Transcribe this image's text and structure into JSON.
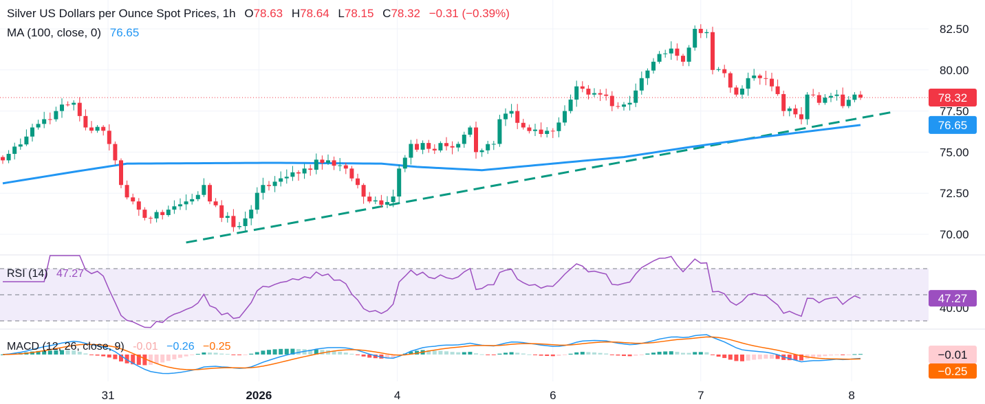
{
  "header": {
    "title": "Silver US Dollars per Ounce Spot Prices, 1h",
    "o_label": "O",
    "o": "78.63",
    "h_label": "H",
    "h": "78.64",
    "l_label": "L",
    "l": "78.15",
    "c_label": "C",
    "c": "78.32",
    "change": "−0.31 (−0.39%)",
    "ma_label": "MA (100, close, 0)",
    "ma_value": "76.65"
  },
  "rsi": {
    "label": "RSI (14)",
    "value": "47.27"
  },
  "macd": {
    "label": "MACD (12, 26, close, 9)",
    "hist": "-0.01",
    "macd": "−0.26",
    "signal": "−0.25",
    "hist_axis": "−0.01",
    "signal_axis": "−0.25"
  },
  "colors": {
    "up": "#089981",
    "down": "#f23645",
    "ma": "#2196f3",
    "rsi": "#9c4fc0",
    "macd": "#2196f3",
    "signal": "#ff6d00",
    "trend": "#089981"
  },
  "chart_data": {
    "type": "candlestick",
    "timeframe": "1h",
    "price_ticks": [
      70.0,
      72.5,
      75.0,
      77.5,
      80.0,
      82.5
    ],
    "price_tick_labels": [
      "70.00",
      "72.50",
      "75.00",
      "77.50",
      "80.00",
      "82.50"
    ],
    "ylim": [
      69.0,
      83.5
    ],
    "rsi_ticks": [
      "40.00"
    ],
    "last_price_label": "78.32",
    "ma_price_label": "76.65",
    "x_labels": [
      {
        "bar": 17.8,
        "label": "31"
      },
      {
        "bar": 43.3,
        "label": "2026",
        "bold": true
      },
      {
        "bar": 66.7,
        "label": "4"
      },
      {
        "bar": 93,
        "label": "6"
      },
      {
        "bar": 118,
        "label": "7"
      },
      {
        "bar": 143.5,
        "label": "8"
      }
    ],
    "close_path": [
      [
        0,
        74.5
      ],
      [
        5,
        76.5
      ],
      [
        9,
        77.5
      ],
      [
        12,
        78
      ],
      [
        14,
        76.5
      ],
      [
        17,
        76.3
      ],
      [
        19,
        74.5
      ],
      [
        20,
        73
      ],
      [
        22,
        72
      ],
      [
        24,
        71
      ],
      [
        28,
        71.5
      ],
      [
        31,
        72
      ],
      [
        34,
        73
      ],
      [
        35,
        72
      ],
      [
        37,
        71
      ],
      [
        40,
        70.5
      ],
      [
        42,
        71.5
      ],
      [
        44,
        73
      ],
      [
        48,
        73.5
      ],
      [
        51,
        74
      ],
      [
        55,
        74.5
      ],
      [
        58,
        74
      ],
      [
        60,
        73
      ],
      [
        62,
        72
      ],
      [
        64,
        71.8
      ],
      [
        66,
        72.3
      ],
      [
        67,
        74
      ],
      [
        69,
        75.5
      ],
      [
        72,
        75.2
      ],
      [
        77,
        75.5
      ],
      [
        79,
        76.5
      ],
      [
        80,
        75
      ],
      [
        83,
        75.5
      ],
      [
        84,
        77
      ],
      [
        86,
        77.5
      ],
      [
        88,
        76.5
      ],
      [
        92,
        76.3
      ],
      [
        94,
        76.8
      ],
      [
        95,
        77.5
      ],
      [
        97,
        79
      ],
      [
        99,
        78.5
      ],
      [
        101,
        78.5
      ],
      [
        103,
        77.8
      ],
      [
        106,
        78
      ],
      [
        108,
        79.5
      ],
      [
        110,
        80.5
      ],
      [
        113,
        81.3
      ],
      [
        115,
        80.5
      ],
      [
        117,
        82.5
      ],
      [
        119,
        82.3
      ],
      [
        120,
        80
      ],
      [
        122,
        79.8
      ],
      [
        124,
        78.5
      ],
      [
        126,
        79.5
      ],
      [
        128,
        79.5
      ],
      [
        130,
        79
      ],
      [
        132,
        77.5
      ],
      [
        134,
        77.3
      ],
      [
        135,
        77
      ],
      [
        136,
        78.5
      ],
      [
        138,
        78
      ],
      [
        141,
        78.5
      ],
      [
        142,
        77.8
      ],
      [
        144,
        78.5
      ],
      [
        145,
        78.32
      ]
    ],
    "ma100_path": [
      [
        0,
        73.1
      ],
      [
        12,
        73.8
      ],
      [
        21,
        74.3
      ],
      [
        46,
        74.35
      ],
      [
        64,
        74.3
      ],
      [
        70,
        74.1
      ],
      [
        81,
        73.9
      ],
      [
        93,
        74.3
      ],
      [
        105,
        74.7
      ],
      [
        116,
        75.3
      ],
      [
        128,
        75.9
      ],
      [
        145,
        76.65
      ]
    ],
    "trendline": [
      [
        31,
        69.5
      ],
      [
        150.6,
        77.45
      ]
    ],
    "rsi_levels": [
      70,
      50,
      30
    ]
  }
}
